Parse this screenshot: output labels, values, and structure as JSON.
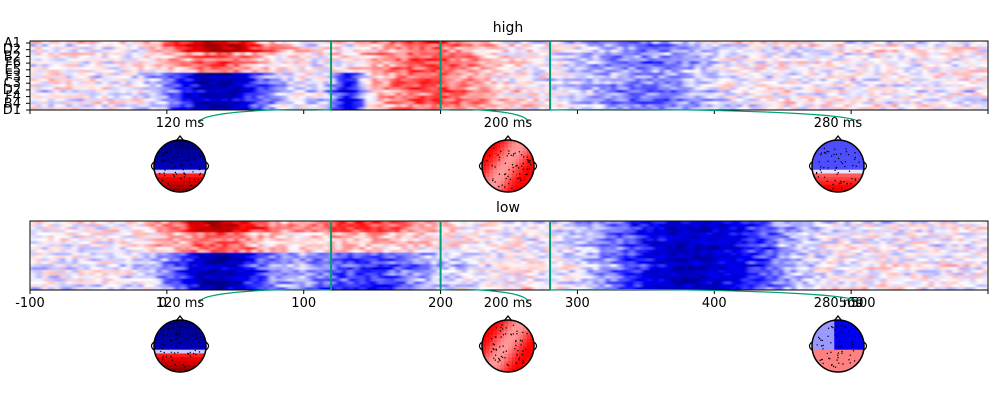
{
  "chart_data": [
    {
      "type": "heatmap",
      "title": "high",
      "x_tick_labels": [],
      "y_tick_labels": [
        "A1",
        "D2",
        "B2",
        "F6",
        "E5",
        "F3",
        "C3",
        "D2",
        "F4",
        "B4",
        "D1"
      ],
      "time_markers_ms": [
        120,
        200,
        280
      ],
      "time_marker_color": "#009e73",
      "colormap": "seismic (blue-white-red)",
      "features": [
        {
          "from_ms": 0,
          "to_ms": 75,
          "upper_rows": "red",
          "lower_rows": "blue",
          "strength": 0.95
        },
        {
          "from_ms": 120,
          "to_ms": 145,
          "upper_rows": "white",
          "lower_rows": "blue",
          "strength": 0.7
        },
        {
          "from_ms": 145,
          "to_ms": 240,
          "upper_rows": "red",
          "lower_rows": "red",
          "strength": 0.4
        },
        {
          "from_ms": 300,
          "to_ms": 400,
          "upper_rows": "blue",
          "lower_rows": "blue",
          "strength": 0.3
        }
      ],
      "topomaps": [
        {
          "label": "120 ms",
          "pattern": "blue-top-red-bottom"
        },
        {
          "label": "200 ms",
          "pattern": "red"
        },
        {
          "label": "280 ms",
          "pattern": "blue-top-light-red-bottom"
        }
      ]
    },
    {
      "type": "heatmap",
      "title": "low",
      "x_tick_labels": [
        "-100",
        "100",
        "200",
        "300",
        "400",
        "500"
      ],
      "xlim": [
        -100,
        600
      ],
      "y_tick_labels": [],
      "time_markers_ms": [
        120,
        200,
        280
      ],
      "time_marker_color": "#009e73",
      "colormap": "seismic (blue-white-red)",
      "features": [
        {
          "from_ms": 0,
          "to_ms": 75,
          "upper_rows": "red",
          "lower_rows": "blue",
          "strength": 0.95
        },
        {
          "from_ms": 90,
          "to_ms": 200,
          "upper_rows": "red",
          "lower_rows": "blue",
          "strength": 0.45
        },
        {
          "from_ms": 320,
          "to_ms": 450,
          "upper_rows": "blue",
          "lower_rows": "blue",
          "strength": 0.85
        }
      ],
      "topomaps": [
        {
          "label": "120 ms",
          "pattern": "blue-top-red-bottom"
        },
        {
          "label": "200 ms",
          "pattern": "red"
        },
        {
          "label": "280 ms",
          "pattern": "blue-right-light-red"
        }
      ],
      "overlapping_labels": [
        "0",
        "500"
      ]
    }
  ]
}
